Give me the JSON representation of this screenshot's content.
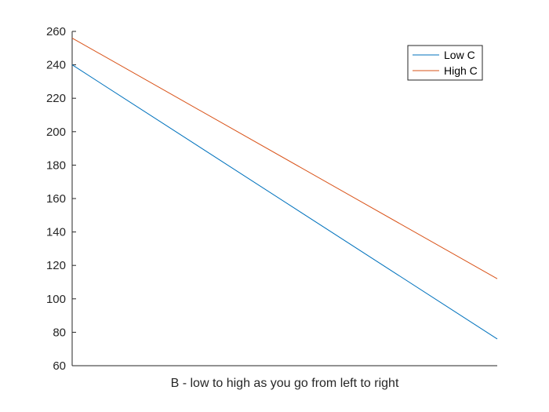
{
  "chart_data": {
    "type": "line",
    "title": "",
    "xlabel": "B - low to high as you go from left to right",
    "ylabel": "",
    "x": [
      0,
      1
    ],
    "xlim": [
      0,
      1
    ],
    "ylim": [
      60,
      260
    ],
    "yticks": [
      60,
      80,
      100,
      120,
      140,
      160,
      180,
      200,
      220,
      240,
      260
    ],
    "xticks": [],
    "grid": false,
    "legend_position": "top-right",
    "series": [
      {
        "name": "Low C",
        "values": [
          240,
          76
        ],
        "color": "#0072BD"
      },
      {
        "name": "High C",
        "values": [
          256,
          112
        ],
        "color": "#D95319"
      }
    ]
  }
}
